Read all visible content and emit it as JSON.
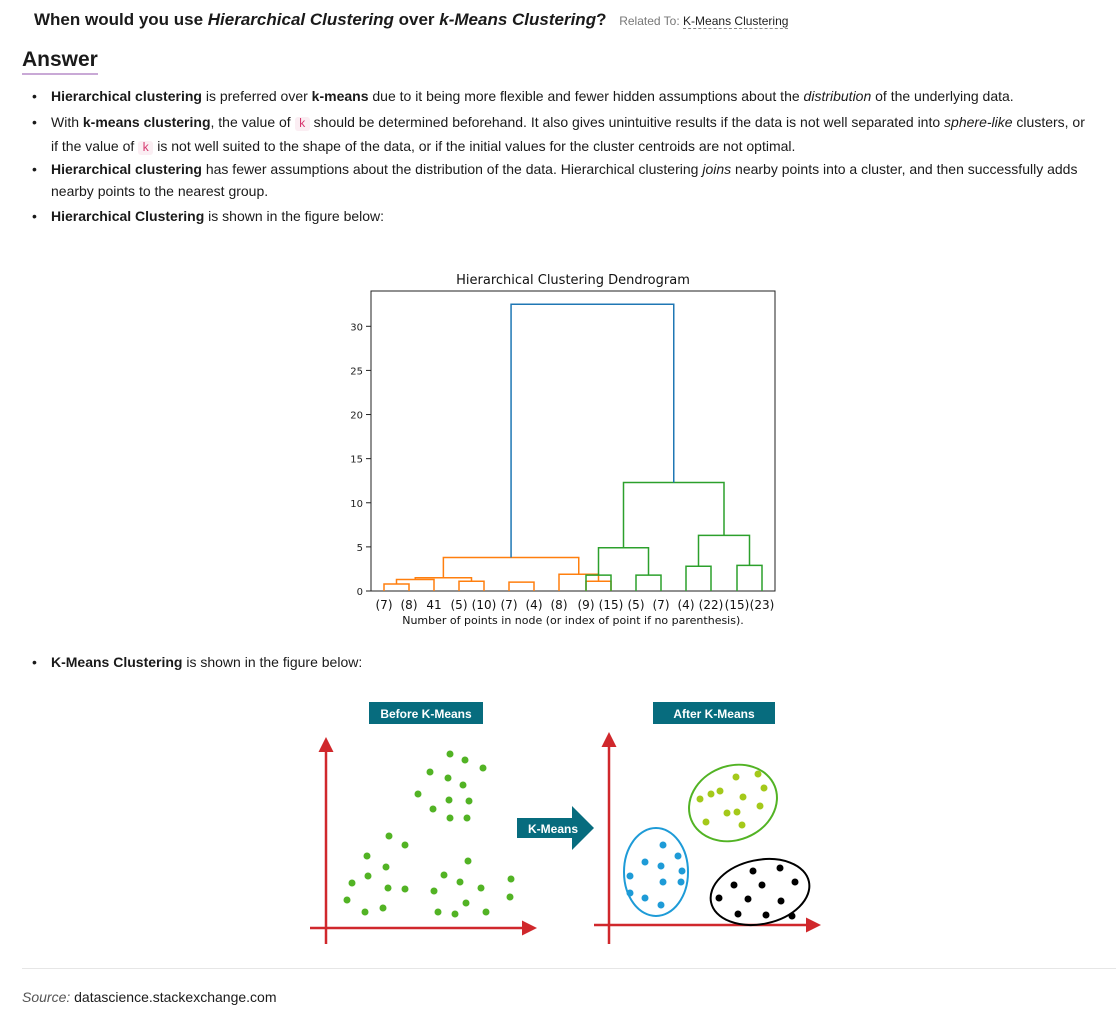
{
  "question": {
    "prefix": "When would you use ",
    "term1": "Hierarchical Clustering",
    "mid": " over ",
    "term2": "k-Means Clustering",
    "suffix": "?",
    "related_label": "Related To:",
    "related_link": "K-Means Clustering"
  },
  "answer_heading": "Answer",
  "bullets": {
    "b1": {
      "bold1": "Hierarchical clustering",
      "t1": " is preferred over ",
      "bold2": "k-means",
      "t2": " due to it being more flexible and fewer hidden assumptions about the ",
      "ital": "distribution",
      "t3": " of the underlying data."
    },
    "b2": {
      "t0": "With ",
      "bold1": "k-means clustering",
      "t1": ", the value of ",
      "code1": "k",
      "t2": " should be determined beforehand. It also gives unintuitive results if the data is not well separated into ",
      "ital": "sphere-like",
      "t3": " clusters, or if the value of ",
      "code2": "k",
      "t4": " is not well suited to the shape of the data, or if the initial values for the cluster centroids are not optimal."
    },
    "b3": {
      "bold1": "Hierarchical clustering",
      "t1": " has fewer assumptions about the distribution of the data. Hierarchical clustering ",
      "ital": "joins",
      "t2": " nearby points into a cluster, and then successfully adds nearby points to the nearest group."
    },
    "b4": {
      "bold1": "Hierarchical Clustering",
      "t1": " is shown in the figure below:"
    },
    "b5": {
      "bold1": "K-Means Clustering",
      "t1": " is shown in the figure below:"
    }
  },
  "chart_data": {
    "type": "dendrogram",
    "title": "Hierarchical Clustering Dendrogram",
    "xlabel": "Number of points in node (or index of point if no parenthesis).",
    "ylabel": "",
    "ylim": [
      0,
      34
    ],
    "yticks": [
      0,
      5,
      10,
      15,
      20,
      25,
      30
    ],
    "leaf_labels": [
      "(7)",
      "(8)",
      "41",
      "(5)",
      "(10)",
      "(7)",
      "(4)",
      "(8)",
      "(9)",
      "(15)",
      "(5)",
      "(7)",
      "(4)",
      "(22)",
      "(15)",
      "(23)"
    ],
    "links": [
      {
        "left": 0,
        "right": 1,
        "height": 0.8,
        "color": "#ff7f0e"
      },
      {
        "left": "n0",
        "right": 2,
        "height": 1.3,
        "color": "#ff7f0e"
      },
      {
        "left": 3,
        "right": 4,
        "height": 1.1,
        "color": "#ff7f0e"
      },
      {
        "left": "n1",
        "right": "n2",
        "height": 1.5,
        "color": "#ff7f0e"
      },
      {
        "left": 5,
        "right": 6,
        "height": 1.0,
        "color": "#ff7f0e"
      },
      {
        "left": 8,
        "right": 9,
        "height": 1.1,
        "color": "#ff7f0e"
      },
      {
        "left": 7,
        "right": "n5",
        "height": 1.9,
        "color": "#ff7f0e"
      },
      {
        "left": "n3",
        "right": "n6",
        "height": 3.8,
        "color": "#ff7f0e"
      },
      {
        "left": 8,
        "right": 9,
        "height": 1.8,
        "color": "#2ca02c"
      },
      {
        "left": 10,
        "right": 11,
        "height": 1.8,
        "color": "#2ca02c"
      },
      {
        "left": "n8",
        "right": "n9",
        "height": 4.9,
        "color": "#2ca02c"
      },
      {
        "left": 12,
        "right": 13,
        "height": 2.8,
        "color": "#2ca02c"
      },
      {
        "left": 14,
        "right": 15,
        "height": 2.9,
        "color": "#2ca02c"
      },
      {
        "left": "n11",
        "right": "n12",
        "height": 6.3,
        "color": "#2ca02c"
      },
      {
        "left": "n10",
        "right": "n13",
        "height": 12.3,
        "color": "#2ca02c"
      },
      {
        "left": "n7",
        "right": "n14",
        "height": 32.5,
        "color": "#1f77b4"
      }
    ]
  },
  "kmeans_figure": {
    "before_label": "Before K-Means",
    "after_label": "After K-Means",
    "arrow_label": "K-Means",
    "colors": {
      "green": "#52b324",
      "lime": "#a4c91a",
      "blue": "#1e9bd7",
      "black": "#000000",
      "axis": "#d0282c",
      "badge": "#076c7e"
    }
  },
  "source": {
    "label": "Source:",
    "text": "datascience.stackexchange.com"
  }
}
